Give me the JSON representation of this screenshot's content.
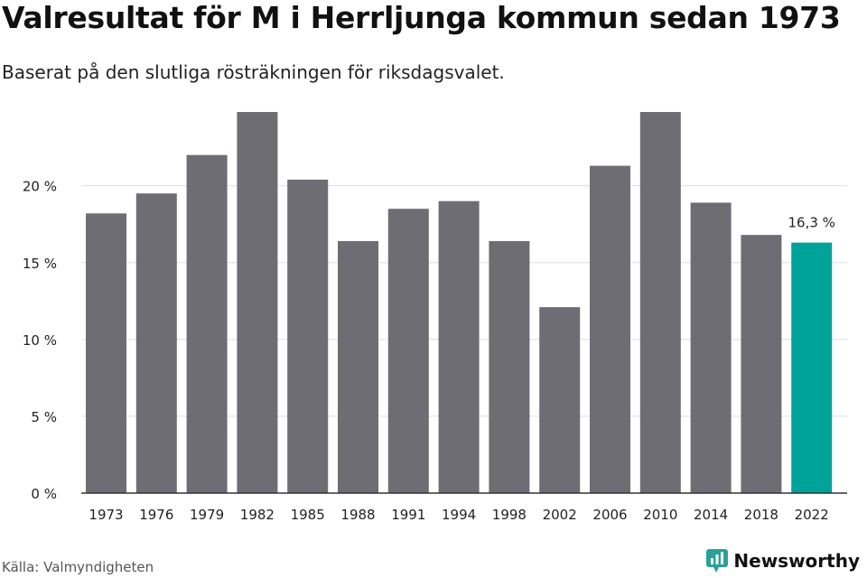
{
  "header": {
    "title": "Valresultat för M i Herrljunga kommun sedan 1973",
    "subtitle": "Baserat på den slutliga rösträkningen för riksdagsvalet."
  },
  "footer": {
    "source": "Källa: Valmyndigheten",
    "brand": "Newsworthy"
  },
  "colors": {
    "bar": "#6e6d73",
    "highlight": "#00a39a",
    "grid": "#dddddd",
    "axis": "#333333",
    "brand": "#2aa198"
  },
  "icons": {
    "brand_logo": "newsworthy-logo-icon"
  },
  "chart_data": {
    "type": "bar",
    "categories": [
      "1973",
      "1976",
      "1979",
      "1982",
      "1985",
      "1988",
      "1991",
      "1994",
      "1998",
      "2002",
      "2006",
      "2010",
      "2014",
      "2018",
      "2022"
    ],
    "values": [
      18.2,
      19.5,
      22.0,
      24.8,
      20.4,
      16.4,
      18.5,
      19.0,
      16.4,
      12.1,
      21.3,
      24.8,
      18.9,
      16.8,
      16.3
    ],
    "highlight_index": 14,
    "highlight_label": "16,3 %",
    "yticks": [
      0,
      5,
      10,
      15,
      20
    ],
    "ytick_labels": [
      "0 %",
      "5 %",
      "10 %",
      "15 %",
      "20 %"
    ],
    "ylim": [
      0,
      24.8
    ],
    "grid": true,
    "title": "Valresultat för M i Herrljunga kommun sedan 1973",
    "xlabel": "",
    "ylabel": ""
  }
}
